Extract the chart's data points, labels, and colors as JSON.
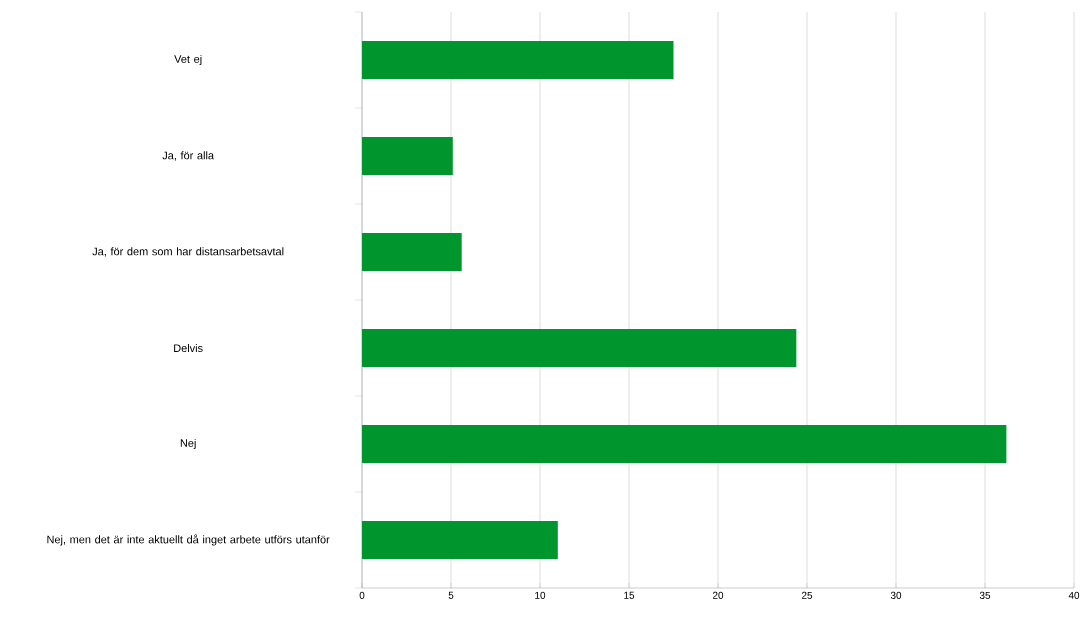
{
  "chart_data": {
    "type": "bar",
    "orientation": "horizontal",
    "categories": [
      "Vet ej",
      "Ja, för alla",
      "Ja, för dem som har distansarbetsavtal",
      "Delvis",
      "Nej",
      "Nej, men det är inte aktuellt då inget arbete utförs utanför"
    ],
    "values": [
      17.5,
      5.1,
      5.6,
      24.4,
      36.2,
      11.0
    ],
    "color": "#00962e",
    "xlim": [
      0,
      40
    ],
    "xticks": [
      0,
      5,
      10,
      15,
      20,
      25,
      30,
      35,
      40
    ],
    "grid": "x"
  }
}
